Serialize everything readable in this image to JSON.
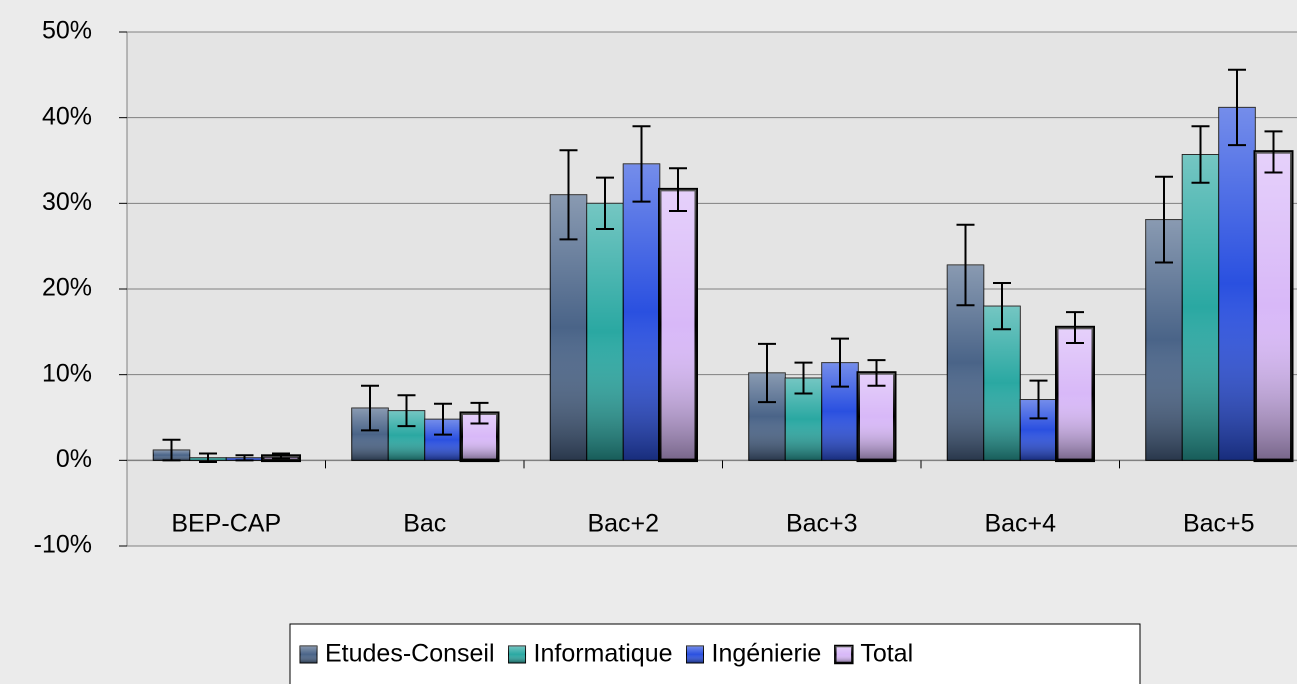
{
  "chart_data": {
    "type": "bar",
    "categories": [
      "BEP-CAP",
      "Bac",
      "Bac+2",
      "Bac+3",
      "Bac+4",
      "Bac+5"
    ],
    "series": [
      {
        "name": "Etudes-Conseil",
        "color": "#4a6488",
        "linewidth": 1,
        "values": [
          1.2,
          6.1,
          31,
          10.2,
          22.8,
          28.1
        ],
        "errors": [
          1.2,
          2.6,
          5.2,
          3.4,
          4.7,
          5
        ]
      },
      {
        "name": "Informatique",
        "color": "#2aa8a2",
        "linewidth": 1,
        "values": [
          0.3,
          5.8,
          30,
          9.6,
          18,
          35.7
        ],
        "errors": [
          0.5,
          1.8,
          3,
          1.8,
          2.7,
          3.3
        ]
      },
      {
        "name": "Ingénierie",
        "color": "#2a50e0",
        "linewidth": 1,
        "values": [
          0.3,
          4.8,
          34.6,
          11.4,
          7.1,
          41.2
        ],
        "errors": [
          0.3,
          1.8,
          4.4,
          2.8,
          2.2,
          4.4
        ]
      },
      {
        "name": "Total",
        "color": "#d8b8f8",
        "linewidth": 3.5,
        "values": [
          0.5,
          5.5,
          31.6,
          10.2,
          15.5,
          36
        ],
        "errors": [
          0.3,
          1.2,
          2.5,
          1.5,
          1.8,
          2.4
        ]
      }
    ],
    "ylim": [
      -10,
      50
    ],
    "yticks": [
      {
        "value": -10,
        "label": "-10%"
      },
      {
        "value": 0,
        "label": "0%"
      },
      {
        "value": 10,
        "label": "10%"
      },
      {
        "value": 20,
        "label": "20%"
      },
      {
        "value": 30,
        "label": "30%"
      },
      {
        "value": 40,
        "label": "40%"
      },
      {
        "value": 50,
        "label": "50%"
      }
    ],
    "grid": true,
    "legend": "bottom"
  }
}
